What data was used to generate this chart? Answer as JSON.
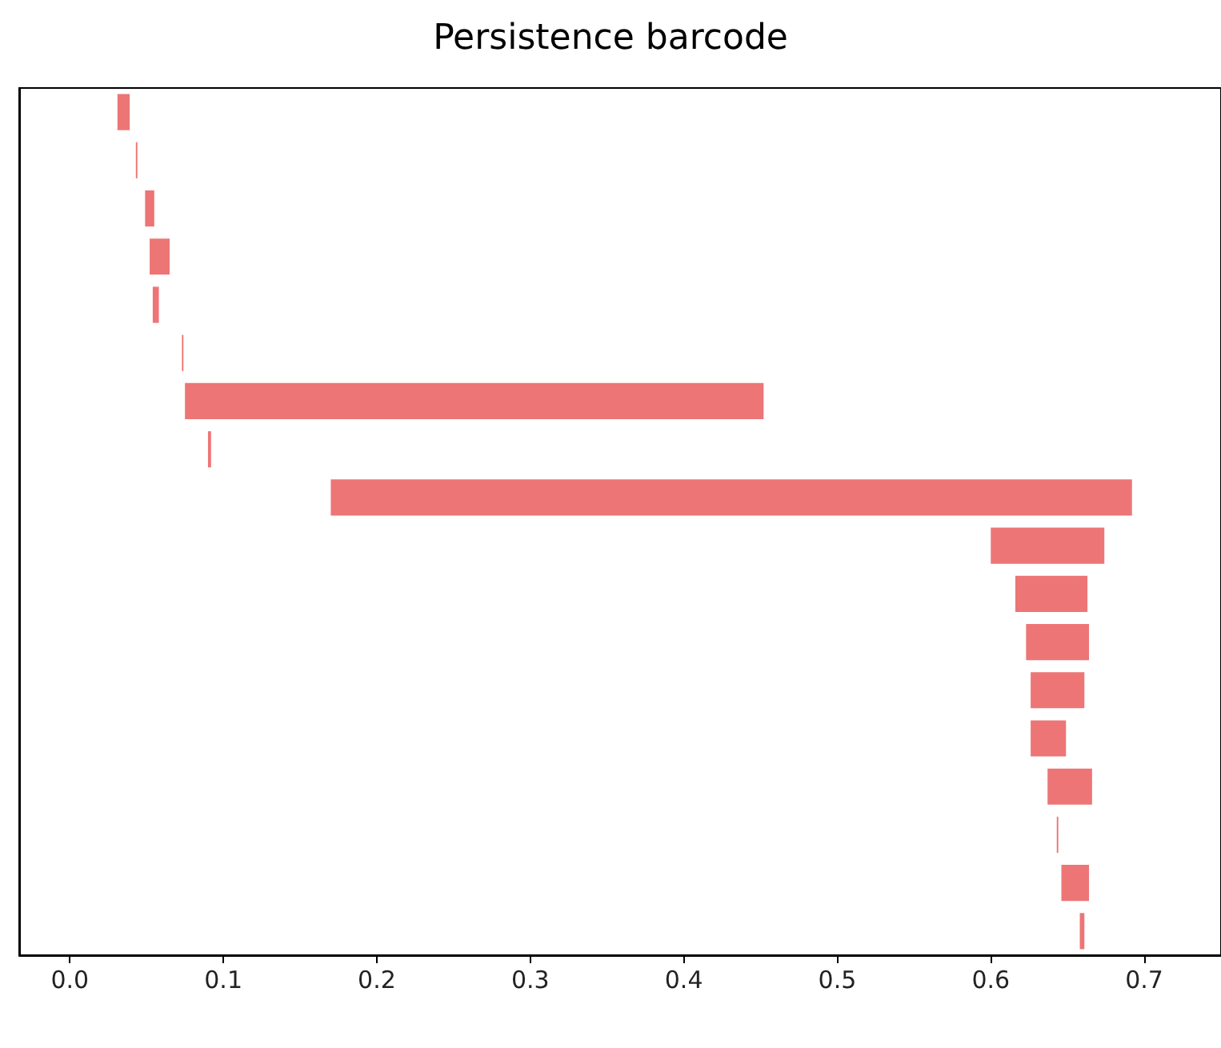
{
  "chart_data": {
    "type": "bar",
    "title": "Persistence barcode",
    "orientation": "horizontal",
    "categories": [
      null,
      null,
      null,
      null,
      null,
      null,
      null,
      null,
      null,
      null,
      null,
      null,
      null,
      null,
      null,
      null,
      null,
      null
    ],
    "base": [
      0.031,
      0.043,
      0.049,
      0.052,
      0.054,
      0.073,
      0.075,
      0.09,
      0.17,
      0.6,
      0.616,
      0.623,
      0.626,
      0.626,
      0.637,
      0.643,
      0.646,
      0.658
    ],
    "values": [
      0.008,
      0.001,
      0.006,
      0.013,
      0.004,
      0.001,
      0.377,
      0.002,
      0.522,
      0.074,
      0.047,
      0.041,
      0.035,
      0.023,
      0.029,
      0.001,
      0.018,
      0.003
    ],
    "color": "#ed7576",
    "xlim": [
      -0.033,
      0.75
    ],
    "xticks": [
      {
        "value": 0,
        "label": "0.0"
      },
      0.1,
      0.2,
      0.3,
      0.4,
      0.5,
      0.6,
      0.7
    ],
    "tick_labels": "x",
    "grid": false
  }
}
